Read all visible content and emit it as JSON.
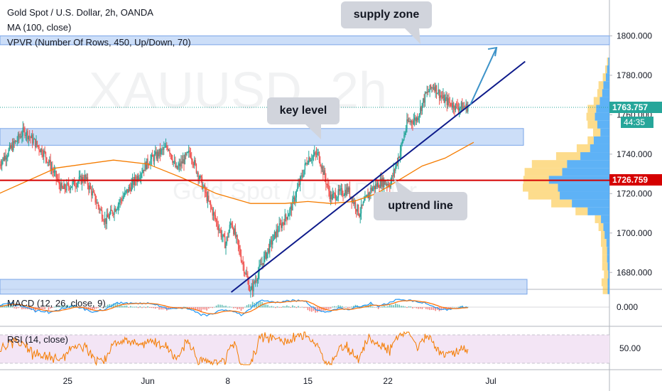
{
  "header": {
    "title": "Gold Spot / U.S. Dollar, 2h, OANDA",
    "ma_label": "MA (100, close)",
    "vpvr_label": "VPVR (Number Of Rows, 450, Up/Down, 70)",
    "watermark_symbol": "XAUUSD",
    "watermark_interval": "2h",
    "watermark_subtitle": "Gold Spot / U.S. Dollar"
  },
  "annotations": {
    "supply_zone": "supply zone",
    "key_level": "key level",
    "uptrend_line": "uptrend line"
  },
  "price_tags": {
    "last_price": "1763.757",
    "countdown": "44:35",
    "red_level": "1726.759"
  },
  "macd": {
    "label": "MACD (12, 26, close, 9)",
    "tick": "0.000"
  },
  "rsi": {
    "label": "RSI (14, close)",
    "tick": "50.00"
  },
  "colors": {
    "bull": "#26a69a",
    "bear": "#ef5350",
    "ma": "#f57c00",
    "zone_fill": "#bbd3f5",
    "zone_stroke": "#7aa6e8",
    "trendline": "#0d1a8a",
    "red_level": "#d50000",
    "arrow": "#3d93c9",
    "vp_up": "#42a5f5",
    "vp_down": "#fbc02d",
    "rsi_band": "#f3e5f5"
  },
  "chart_data": {
    "type": "candlestick",
    "title": "Gold Spot / U.S. Dollar, 2h, OANDA",
    "y_ticks": [
      "1800.000",
      "1780.000",
      "1760.000",
      "1740.000",
      "1720.000",
      "1700.000",
      "1680.000"
    ],
    "y_tick_values": [
      1800,
      1780,
      1760,
      1740,
      1720,
      1700,
      1680
    ],
    "x_ticks": [
      "25",
      "Jun",
      "8",
      "15",
      "22",
      "Jul"
    ],
    "x_tick_days": [
      -7,
      0,
      7,
      14,
      21,
      30
    ],
    "ylim": [
      1669,
      1814
    ],
    "xlim_days": [
      -13,
      40.5
    ],
    "price_path_days": [
      -13,
      -10.8,
      -9,
      -7.5,
      -5.5,
      -3.7,
      -1.7,
      0,
      1.8,
      2.5,
      3.7,
      5.3,
      6.8,
      7.3,
      9,
      10,
      11.2,
      12.5,
      14,
      14.9,
      16,
      17.5,
      18.5,
      19.5,
      20.4,
      21.2,
      22,
      22.7,
      23.5,
      24.3,
      25,
      25.8,
      27,
      28
    ],
    "price_path_values": [
      1735,
      1752,
      1740,
      1722,
      1728,
      1706,
      1722,
      1736,
      1744,
      1732,
      1741,
      1716,
      1694,
      1706,
      1670,
      1685,
      1700,
      1712,
      1738,
      1740,
      1718,
      1722,
      1710,
      1722,
      1726,
      1725,
      1740,
      1756,
      1758,
      1770,
      1775,
      1768,
      1764,
      1764
    ],
    "ma_days": [
      -13,
      -8,
      -3,
      0,
      3,
      6,
      9,
      12,
      14,
      16,
      18,
      20,
      22,
      24,
      26,
      28.5
    ],
    "ma_values": [
      1720,
      1733,
      1737,
      1735,
      1728,
      1720,
      1715,
      1715,
      1716,
      1715,
      1716,
      1720,
      1727,
      1734,
      1738,
      1746
    ],
    "key_level_zone": [
      1744.5,
      1753
    ],
    "supply_zone": [
      1795.5,
      1800
    ],
    "bottom_zone": [
      1669,
      1676.5
    ],
    "uptrend_line": {
      "from": {
        "day": 7.3,
        "price": 1670
      },
      "to": {
        "day": 33,
        "price": 1787
      }
    },
    "red_level": 1726.759,
    "last_price": 1763.757,
    "projection_arrow": {
      "from": {
        "day": 28.2,
        "price": 1765
      },
      "to": {
        "day": 30.5,
        "price": 1794
      }
    },
    "volume_profile": {
      "bins": [
        1671,
        1675,
        1679,
        1683,
        1687,
        1691,
        1695,
        1699,
        1703,
        1707,
        1711,
        1715,
        1719,
        1723,
        1727,
        1731,
        1735,
        1739,
        1743,
        1747,
        1751,
        1755,
        1759,
        1763,
        1767,
        1771,
        1775,
        1779,
        1783,
        1787
      ],
      "up_volume": [
        3,
        3,
        2,
        3,
        4,
        4,
        5,
        8,
        10,
        14,
        36,
        62,
        82,
        85,
        100,
        78,
        70,
        48,
        32,
        26,
        15,
        20,
        24,
        22,
        16,
        12,
        10,
        6,
        4,
        2
      ],
      "down_volume": [
        8,
        10,
        7,
        9,
        8,
        8,
        9,
        6,
        8,
        10,
        20,
        34,
        52,
        58,
        42,
        62,
        58,
        40,
        22,
        10,
        12,
        16,
        14,
        14,
        10,
        8,
        8,
        5,
        3,
        2
      ]
    },
    "macd": {
      "ylim": [
        -1,
        1
      ],
      "zero_tick": 0
    },
    "rsi": {
      "ylim": [
        20,
        80
      ],
      "band": [
        30,
        70
      ],
      "mid_tick": 50
    }
  }
}
